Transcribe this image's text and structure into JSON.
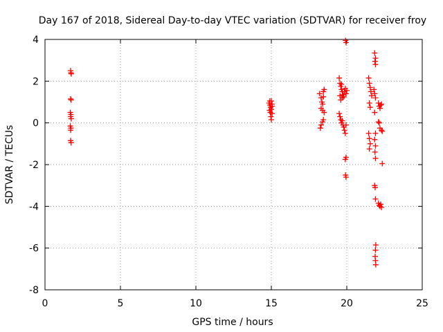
{
  "chart_data": {
    "type": "scatter",
    "title": "Day 167 of 2018, Sidereal Day-to-day VTEC variation (SDTVAR) for receiver froy",
    "xlabel": "GPS time / hours",
    "ylabel": "SDTVAR / TECUs",
    "xlim": [
      0,
      25
    ],
    "ylim": [
      -8,
      4
    ],
    "xticks": [
      0,
      5,
      10,
      15,
      20,
      25
    ],
    "yticks": [
      -8,
      -6,
      -4,
      -2,
      0,
      2,
      4
    ],
    "xtick_labels": [
      "0",
      "5",
      "10",
      "15",
      "20",
      "25"
    ],
    "ytick_labels": [
      "-8",
      "-6",
      "-4",
      "-2",
      "0",
      "2",
      "4"
    ],
    "grid": true,
    "marker": "plus",
    "marker_color": "#ff0000",
    "series": [
      {
        "name": "SDTVAR",
        "points": [
          [
            1.7,
            2.5
          ],
          [
            1.72,
            2.4
          ],
          [
            1.74,
            2.35
          ],
          [
            1.7,
            1.15
          ],
          [
            1.73,
            1.1
          ],
          [
            1.68,
            0.5
          ],
          [
            1.72,
            0.4
          ],
          [
            1.7,
            0.3
          ],
          [
            1.74,
            0.2
          ],
          [
            1.68,
            -0.15
          ],
          [
            1.72,
            -0.25
          ],
          [
            1.7,
            -0.35
          ],
          [
            1.7,
            -0.85
          ],
          [
            1.73,
            -0.95
          ],
          [
            14.85,
            0.95
          ],
          [
            14.9,
            0.85
          ],
          [
            14.95,
            0.75
          ],
          [
            15.0,
            1.05
          ],
          [
            15.05,
            0.9
          ],
          [
            14.88,
            0.6
          ],
          [
            14.93,
            0.5
          ],
          [
            15.0,
            0.65
          ],
          [
            15.05,
            0.45
          ],
          [
            14.97,
            0.3
          ],
          [
            15.0,
            0.15
          ],
          [
            14.9,
            1.05
          ],
          [
            15.05,
            0.8
          ],
          [
            18.2,
            1.4
          ],
          [
            18.3,
            1.2
          ],
          [
            18.35,
            1.0
          ],
          [
            18.4,
            0.9
          ],
          [
            18.45,
            1.25
          ],
          [
            18.5,
            1.6
          ],
          [
            18.45,
            1.5
          ],
          [
            18.3,
            0.7
          ],
          [
            18.4,
            0.6
          ],
          [
            18.5,
            0.5
          ],
          [
            18.45,
            0.15
          ],
          [
            18.4,
            0.05
          ],
          [
            18.3,
            -0.1
          ],
          [
            18.25,
            -0.25
          ],
          [
            19.5,
            2.15
          ],
          [
            19.55,
            1.9
          ],
          [
            19.6,
            1.75
          ],
          [
            19.65,
            1.6
          ],
          [
            19.7,
            1.5
          ],
          [
            19.75,
            1.35
          ],
          [
            19.8,
            1.25
          ],
          [
            19.6,
            1.1
          ],
          [
            19.55,
            1.3
          ],
          [
            19.85,
            1.5
          ],
          [
            19.9,
            1.65
          ],
          [
            19.95,
            1.4
          ],
          [
            20.0,
            1.55
          ],
          [
            19.65,
            1.85
          ],
          [
            19.7,
            1.2
          ],
          [
            19.5,
            0.45
          ],
          [
            19.55,
            0.3
          ],
          [
            19.6,
            0.15
          ],
          [
            19.65,
            0.0
          ],
          [
            19.7,
            0.1
          ],
          [
            19.75,
            -0.1
          ],
          [
            19.8,
            -0.2
          ],
          [
            19.85,
            -0.35
          ],
          [
            19.9,
            -0.5
          ],
          [
            19.95,
            -0.1
          ],
          [
            19.95,
            -1.65
          ],
          [
            19.9,
            -1.75
          ],
          [
            19.92,
            -2.5
          ],
          [
            19.95,
            -2.6
          ],
          [
            19.92,
            3.95
          ],
          [
            19.95,
            3.85
          ],
          [
            21.45,
            2.15
          ],
          [
            21.5,
            1.9
          ],
          [
            21.55,
            1.7
          ],
          [
            21.6,
            1.5
          ],
          [
            21.65,
            1.3
          ],
          [
            21.5,
            0.95
          ],
          [
            21.55,
            0.75
          ],
          [
            21.45,
            -0.5
          ],
          [
            21.5,
            -0.75
          ],
          [
            21.55,
            -1.0
          ],
          [
            21.5,
            -1.25
          ],
          [
            21.85,
            3.35
          ],
          [
            21.9,
            3.1
          ],
          [
            21.87,
            2.95
          ],
          [
            21.9,
            2.8
          ],
          [
            21.8,
            1.6
          ],
          [
            21.85,
            1.4
          ],
          [
            21.9,
            1.2
          ],
          [
            21.85,
            0.5
          ],
          [
            21.9,
            -0.5
          ],
          [
            21.85,
            -0.8
          ],
          [
            21.9,
            -1.1
          ],
          [
            21.87,
            -1.4
          ],
          [
            21.9,
            -1.7
          ],
          [
            21.85,
            -3.0
          ],
          [
            21.88,
            -3.1
          ],
          [
            21.9,
            -3.65
          ],
          [
            21.92,
            -5.85
          ],
          [
            21.9,
            -6.1
          ],
          [
            21.88,
            -6.4
          ],
          [
            21.9,
            -6.6
          ],
          [
            21.92,
            -6.8
          ],
          [
            22.1,
            0.95
          ],
          [
            22.15,
            0.8
          ],
          [
            22.2,
            0.7
          ],
          [
            22.25,
            0.85
          ],
          [
            22.3,
            0.9
          ],
          [
            22.1,
            0.05
          ],
          [
            22.15,
            0.0
          ],
          [
            22.2,
            -0.25
          ],
          [
            22.3,
            -0.35
          ],
          [
            22.35,
            -0.4
          ],
          [
            22.35,
            -1.95
          ],
          [
            22.1,
            -3.85
          ],
          [
            22.15,
            -3.95
          ],
          [
            22.2,
            -4.0
          ],
          [
            22.25,
            -3.9
          ],
          [
            22.3,
            -4.05
          ]
        ]
      }
    ]
  }
}
